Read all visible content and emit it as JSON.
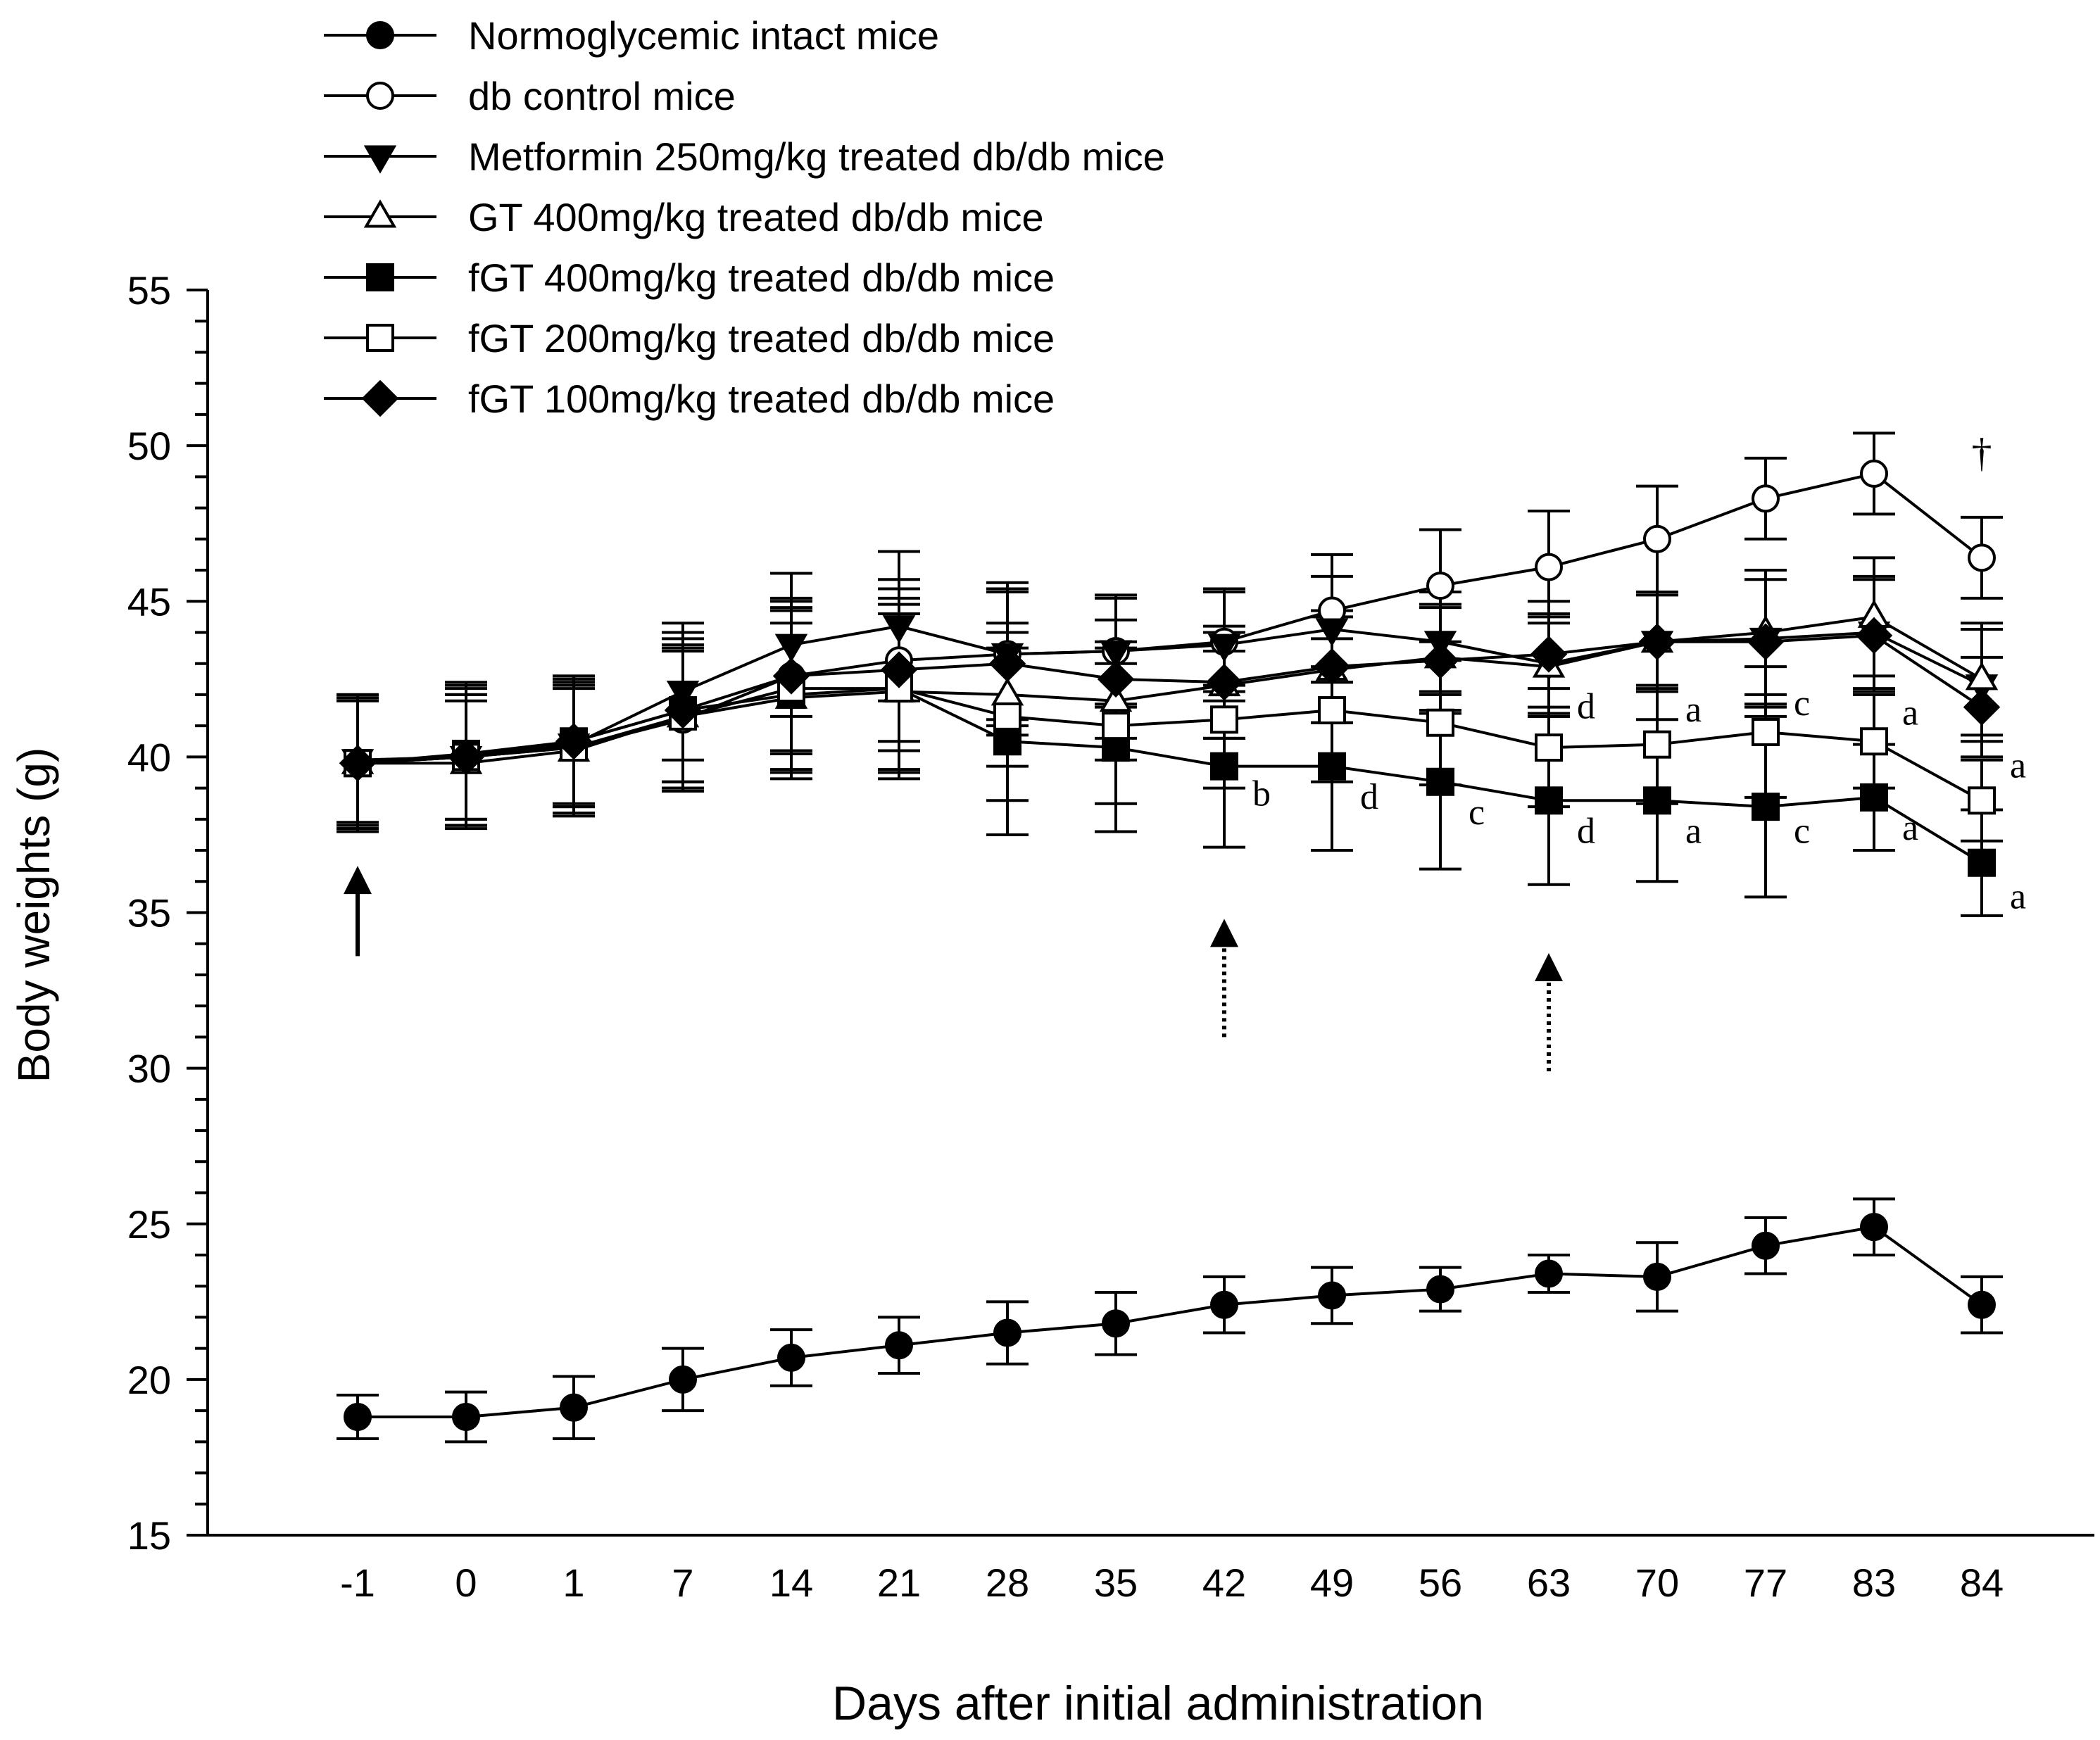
{
  "chart_data": {
    "type": "line",
    "title": "",
    "xlabel": "Days after initial administration",
    "ylabel": "Body weights (g)",
    "ylim": [
      15,
      55
    ],
    "yticks": [
      15,
      20,
      25,
      30,
      35,
      40,
      45,
      50,
      55
    ],
    "categories": [
      "-1",
      "0",
      "1",
      "7",
      "14",
      "21",
      "28",
      "35",
      "42",
      "49",
      "56",
      "63",
      "70",
      "77",
      "83",
      "84"
    ],
    "legend_position": "top-left",
    "series": [
      {
        "name": "Normoglycemic intact mice",
        "marker": "circle-filled",
        "values": [
          18.8,
          18.8,
          19.1,
          20.0,
          20.7,
          21.1,
          21.5,
          21.8,
          22.4,
          22.7,
          22.9,
          23.4,
          23.3,
          24.3,
          24.9,
          22.4
        ],
        "errors": [
          0.7,
          0.8,
          1.0,
          1.0,
          0.9,
          0.9,
          1.0,
          1.0,
          0.9,
          0.9,
          0.7,
          0.6,
          1.1,
          0.9,
          0.9,
          0.9
        ]
      },
      {
        "name": "db control mice",
        "marker": "circle-open",
        "values": [
          39.8,
          40.0,
          40.3,
          41.2,
          42.6,
          43.1,
          43.3,
          43.4,
          43.7,
          44.7,
          45.5,
          46.1,
          47.0,
          48.3,
          49.1,
          46.4
        ],
        "errors": [
          2.2,
          2.3,
          2.2,
          2.3,
          2.5,
          2.6,
          2.1,
          1.7,
          1.6,
          1.8,
          1.8,
          1.8,
          1.7,
          1.3,
          1.3,
          1.3
        ]
      },
      {
        "name": "Metformin 250mg/kg treated db/db mice",
        "marker": "triangle-down-filled",
        "values": [
          39.9,
          40.0,
          40.4,
          42.1,
          43.6,
          44.2,
          43.3,
          43.4,
          43.6,
          44.1,
          43.7,
          43.0,
          43.7,
          43.8,
          44.0,
          42.3
        ],
        "errors": [
          2.0,
          2.0,
          1.9,
          2.2,
          2.3,
          2.4,
          2.3,
          1.8,
          1.8,
          1.7,
          1.6,
          1.6,
          1.5,
          2.2,
          1.8,
          1.8
        ]
      },
      {
        "name": "GT 400mg/kg treated db/db mice",
        "marker": "triangle-up-open",
        "values": [
          39.8,
          39.8,
          40.2,
          41.3,
          41.9,
          42.1,
          42.0,
          41.8,
          42.3,
          42.8,
          43.2,
          42.9,
          43.7,
          44.0,
          44.5,
          42.5
        ],
        "errors": [
          2.1,
          2.0,
          2.0,
          2.1,
          2.4,
          2.5,
          2.3,
          1.9,
          1.7,
          1.7,
          1.7,
          1.6,
          1.6,
          2.0,
          1.9,
          1.8
        ]
      },
      {
        "name": "fGT 400mg/kg treated db/db mice",
        "marker": "square-filled",
        "values": [
          39.8,
          40.1,
          40.5,
          41.5,
          42.0,
          42.2,
          40.5,
          40.3,
          39.7,
          39.7,
          39.2,
          38.6,
          38.6,
          38.4,
          38.7,
          36.6
        ],
        "errors": [
          2.2,
          2.3,
          2.1,
          2.5,
          2.7,
          2.9,
          3.0,
          2.7,
          2.6,
          2.7,
          2.8,
          2.7,
          2.6,
          2.9,
          1.7,
          1.7
        ]
      },
      {
        "name": "fGT 200mg/kg treated db/db mice",
        "marker": "square-open",
        "values": [
          39.8,
          40.0,
          40.3,
          41.3,
          42.2,
          42.2,
          41.3,
          41.0,
          41.2,
          41.5,
          41.1,
          40.3,
          40.4,
          40.8,
          40.5,
          38.6
        ],
        "errors": [
          2.0,
          2.0,
          2.1,
          2.3,
          2.6,
          2.7,
          2.7,
          2.5,
          2.2,
          2.3,
          2.0,
          1.9,
          1.9,
          2.1,
          1.5,
          1.3
        ]
      },
      {
        "name": "fGT 100mg/kg treated db/db mice",
        "marker": "diamond-filled",
        "values": [
          39.8,
          40.0,
          40.5,
          41.5,
          42.6,
          42.8,
          43.0,
          42.5,
          42.4,
          42.9,
          43.1,
          43.3,
          43.7,
          43.7,
          43.9,
          41.6
        ],
        "errors": [
          2.1,
          2.2,
          2.1,
          2.3,
          2.4,
          2.6,
          2.3,
          1.9,
          1.8,
          1.8,
          1.7,
          1.7,
          1.6,
          2.0,
          1.8,
          1.6
        ]
      }
    ],
    "annotations": [
      {
        "text": "b",
        "category": "42",
        "value": 38.8
      },
      {
        "text": "d",
        "category": "49",
        "value": 38.7
      },
      {
        "text": "c",
        "category": "56",
        "value": 38.2
      },
      {
        "text": "d",
        "category": "63",
        "value": 41.6
      },
      {
        "text": "d",
        "category": "63",
        "value": 37.6
      },
      {
        "text": "a",
        "category": "70",
        "value": 41.5
      },
      {
        "text": "a",
        "category": "70",
        "value": 37.6
      },
      {
        "text": "c",
        "category": "77",
        "value": 41.7
      },
      {
        "text": "c",
        "category": "77",
        "value": 37.6
      },
      {
        "text": "a",
        "category": "83",
        "value": 41.4
      },
      {
        "text": "a",
        "category": "83",
        "value": 37.7
      },
      {
        "text": "a",
        "category": "84",
        "value": 39.7
      },
      {
        "text": "a",
        "category": "84",
        "value": 35.5
      },
      {
        "text": "†",
        "category": "84",
        "value": 49.7
      }
    ],
    "arrows": [
      {
        "style": "solid",
        "category": "-1",
        "from": 33.6,
        "to": 36.5
      },
      {
        "style": "dotted",
        "category": "42",
        "from": 31.0,
        "to": 34.8
      },
      {
        "style": "dotted",
        "category": "63",
        "from": 29.9,
        "to": 33.7
      }
    ]
  }
}
